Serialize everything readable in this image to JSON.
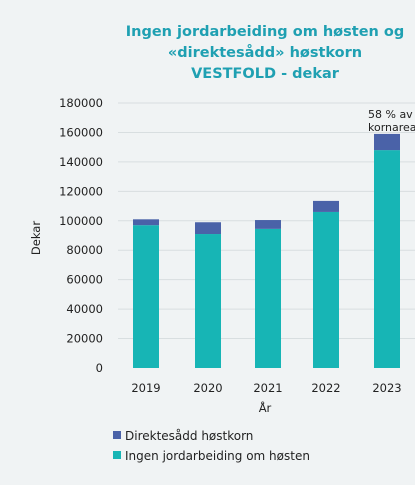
{
  "chart_data": {
    "type": "bar",
    "stacked": true,
    "title": [
      "Ingen jordarbeiding om høsten og",
      "«direktesådd» høstkorn",
      "VESTFOLD - dekar"
    ],
    "xlabel": "År",
    "ylabel": "Dekar",
    "categories": [
      "2019",
      "2020",
      "2021",
      "2022",
      "2023"
    ],
    "series": [
      {
        "name": "Ingen jordarbeiding om høsten",
        "color": "#17b5b5",
        "values": [
          97000,
          91000,
          94500,
          106000,
          148000
        ]
      },
      {
        "name": "Direktesådd høstkorn",
        "color": "#4a62a8",
        "values": [
          4000,
          8000,
          6000,
          7500,
          11000
        ]
      }
    ],
    "ylim": [
      0,
      180000
    ],
    "yticks": [
      0,
      20000,
      40000,
      60000,
      80000,
      100000,
      120000,
      140000,
      160000,
      180000
    ],
    "grid": true,
    "legend_position": "bottom-left",
    "annotation": {
      "category": "2023",
      "lines": [
        "58 % av",
        "kornareale"
      ]
    }
  }
}
